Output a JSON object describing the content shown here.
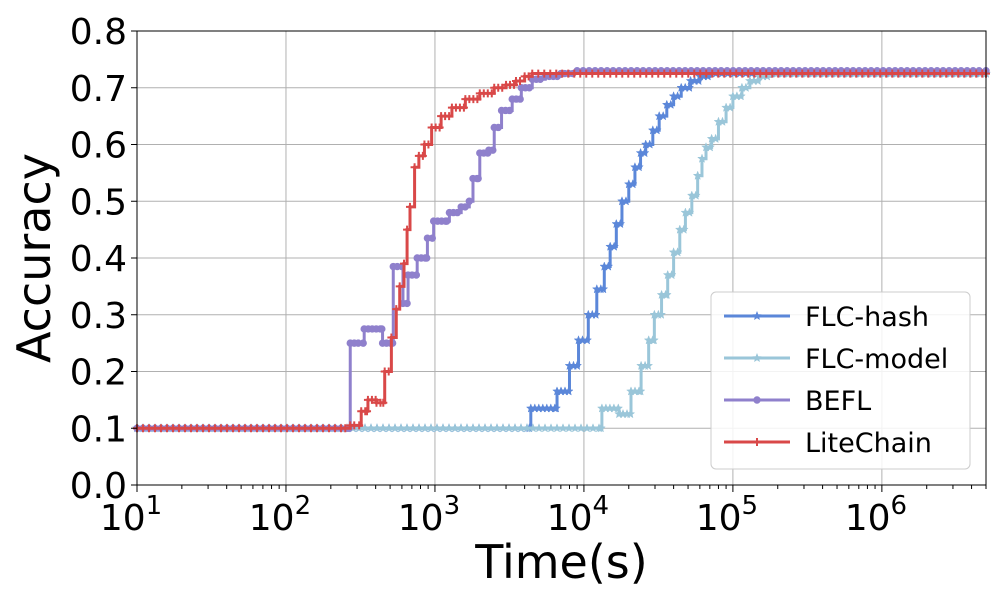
{
  "chart_data": {
    "type": "line",
    "xlabel": "Time(s)",
    "ylabel": "Accuracy",
    "x_scale": "log",
    "xlim": [
      10,
      5000000
    ],
    "ylim": [
      0.0,
      0.8
    ],
    "grid": true,
    "legend_position": "lower-right",
    "x_ticks": [
      {
        "value": 10,
        "base": "10",
        "exp": "1"
      },
      {
        "value": 100,
        "base": "10",
        "exp": "2"
      },
      {
        "value": 1000,
        "base": "10",
        "exp": "3"
      },
      {
        "value": 10000,
        "base": "10",
        "exp": "4"
      },
      {
        "value": 100000,
        "base": "10",
        "exp": "5"
      },
      {
        "value": 1000000,
        "base": "10",
        "exp": "6"
      }
    ],
    "y_ticks": [
      "0.0",
      "0.1",
      "0.2",
      "0.3",
      "0.4",
      "0.5",
      "0.6",
      "0.7",
      "0.8"
    ],
    "series": [
      {
        "name": "FLC-hash",
        "color": "#5b87d9",
        "marker": "star",
        "points": [
          [
            10,
            0.1
          ],
          [
            4300,
            0.1
          ],
          [
            4400,
            0.135
          ],
          [
            6500,
            0.135
          ],
          [
            6600,
            0.165
          ],
          [
            7900,
            0.165
          ],
          [
            8000,
            0.21
          ],
          [
            9000,
            0.21
          ],
          [
            9200,
            0.255
          ],
          [
            10500,
            0.255
          ],
          [
            10700,
            0.3
          ],
          [
            12000,
            0.3
          ],
          [
            12200,
            0.345
          ],
          [
            13500,
            0.345
          ],
          [
            13700,
            0.385
          ],
          [
            15000,
            0.42
          ],
          [
            16500,
            0.46
          ],
          [
            18000,
            0.5
          ],
          [
            20000,
            0.53
          ],
          [
            22000,
            0.56
          ],
          [
            24000,
            0.585
          ],
          [
            26000,
            0.6
          ],
          [
            29000,
            0.625
          ],
          [
            32000,
            0.65
          ],
          [
            36000,
            0.67
          ],
          [
            40000,
            0.685
          ],
          [
            45000,
            0.7
          ],
          [
            52000,
            0.712
          ],
          [
            60000,
            0.72
          ],
          [
            70000,
            0.725
          ],
          [
            5000000,
            0.725
          ]
        ]
      },
      {
        "name": "FLC-model",
        "color": "#9ac6d9",
        "marker": "star",
        "points": [
          [
            10,
            0.1
          ],
          [
            13000,
            0.1
          ],
          [
            13200,
            0.135
          ],
          [
            17000,
            0.135
          ],
          [
            17200,
            0.125
          ],
          [
            20500,
            0.125
          ],
          [
            20700,
            0.165
          ],
          [
            24000,
            0.165
          ],
          [
            24200,
            0.21
          ],
          [
            27000,
            0.21
          ],
          [
            27200,
            0.255
          ],
          [
            29500,
            0.255
          ],
          [
            29700,
            0.3
          ],
          [
            33000,
            0.3
          ],
          [
            33200,
            0.335
          ],
          [
            36000,
            0.335
          ],
          [
            36500,
            0.37
          ],
          [
            40000,
            0.41
          ],
          [
            44000,
            0.45
          ],
          [
            48000,
            0.48
          ],
          [
            53000,
            0.51
          ],
          [
            58000,
            0.545
          ],
          [
            62000,
            0.575
          ],
          [
            66000,
            0.595
          ],
          [
            72000,
            0.61
          ],
          [
            80000,
            0.64
          ],
          [
            90000,
            0.665
          ],
          [
            100000,
            0.685
          ],
          [
            115000,
            0.7
          ],
          [
            130000,
            0.712
          ],
          [
            150000,
            0.72
          ],
          [
            180000,
            0.725
          ],
          [
            5000000,
            0.725
          ]
        ]
      },
      {
        "name": "BEFL",
        "color": "#8f80cc",
        "marker": "circle",
        "points": [
          [
            10,
            0.1
          ],
          [
            265,
            0.1
          ],
          [
            270,
            0.25
          ],
          [
            330,
            0.25
          ],
          [
            335,
            0.275
          ],
          [
            440,
            0.275
          ],
          [
            445,
            0.25
          ],
          [
            520,
            0.25
          ],
          [
            525,
            0.385
          ],
          [
            600,
            0.385
          ],
          [
            610,
            0.32
          ],
          [
            650,
            0.32
          ],
          [
            660,
            0.37
          ],
          [
            750,
            0.37
          ],
          [
            760,
            0.4
          ],
          [
            880,
            0.4
          ],
          [
            890,
            0.435
          ],
          [
            960,
            0.435
          ],
          [
            980,
            0.465
          ],
          [
            1200,
            0.465
          ],
          [
            1250,
            0.48
          ],
          [
            1500,
            0.49
          ],
          [
            1700,
            0.5
          ],
          [
            1800,
            0.54
          ],
          [
            1950,
            0.54
          ],
          [
            2000,
            0.585
          ],
          [
            2300,
            0.59
          ],
          [
            2500,
            0.63
          ],
          [
            2800,
            0.66
          ],
          [
            3300,
            0.68
          ],
          [
            3800,
            0.7
          ],
          [
            4500,
            0.715
          ],
          [
            5500,
            0.72
          ],
          [
            7000,
            0.725
          ],
          [
            9000,
            0.73
          ],
          [
            5000000,
            0.73
          ]
        ]
      },
      {
        "name": "LiteChain",
        "color": "#d94848",
        "marker": "plus",
        "points": [
          [
            10,
            0.1
          ],
          [
            250,
            0.1
          ],
          [
            270,
            0.105
          ],
          [
            310,
            0.105
          ],
          [
            320,
            0.13
          ],
          [
            350,
            0.13
          ],
          [
            355,
            0.15
          ],
          [
            400,
            0.15
          ],
          [
            405,
            0.145
          ],
          [
            450,
            0.145
          ],
          [
            460,
            0.2
          ],
          [
            510,
            0.26
          ],
          [
            550,
            0.31
          ],
          [
            580,
            0.35
          ],
          [
            620,
            0.39
          ],
          [
            650,
            0.45
          ],
          [
            680,
            0.49
          ],
          [
            730,
            0.56
          ],
          [
            780,
            0.58
          ],
          [
            850,
            0.6
          ],
          [
            950,
            0.63
          ],
          [
            1100,
            0.65
          ],
          [
            1300,
            0.665
          ],
          [
            1600,
            0.68
          ],
          [
            2000,
            0.69
          ],
          [
            2500,
            0.7
          ],
          [
            3000,
            0.705
          ],
          [
            3500,
            0.712
          ],
          [
            4000,
            0.72
          ],
          [
            4500,
            0.725
          ],
          [
            5000000,
            0.725
          ]
        ]
      }
    ]
  }
}
